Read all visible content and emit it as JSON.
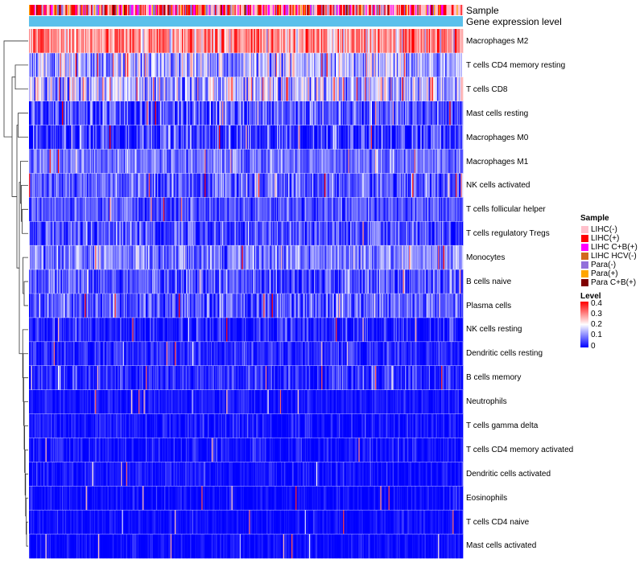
{
  "chart_data": {
    "type": "heatmap",
    "annotation_tracks": [
      "Sample",
      "Gene expression level"
    ],
    "rows": [
      {
        "name": "Macrophages M2",
        "mean": 0.29,
        "sd": 0.07
      },
      {
        "name": "T cells CD4 memory resting",
        "mean": 0.13,
        "sd": 0.07
      },
      {
        "name": "T cells CD8",
        "mean": 0.15,
        "sd": 0.08
      },
      {
        "name": "Mast cells resting",
        "mean": 0.06,
        "sd": 0.06
      },
      {
        "name": "Macrophages M0",
        "mean": 0.04,
        "sd": 0.06
      },
      {
        "name": "Macrophages M1",
        "mean": 0.09,
        "sd": 0.04
      },
      {
        "name": "NK cells activated",
        "mean": 0.07,
        "sd": 0.05
      },
      {
        "name": "T cells follicular helper",
        "mean": 0.06,
        "sd": 0.04
      },
      {
        "name": "T cells regulatory  Tregs",
        "mean": 0.06,
        "sd": 0.05
      },
      {
        "name": "Monocytes",
        "mean": 0.1,
        "sd": 0.05
      },
      {
        "name": "B cells naive",
        "mean": 0.06,
        "sd": 0.05
      },
      {
        "name": "Plasma cells",
        "mean": 0.07,
        "sd": 0.05
      },
      {
        "name": "NK cells resting",
        "mean": 0.02,
        "sd": 0.04
      },
      {
        "name": "Dendritic cells resting",
        "mean": 0.03,
        "sd": 0.03
      },
      {
        "name": "B cells memory",
        "mean": 0.03,
        "sd": 0.04
      },
      {
        "name": "Neutrophils",
        "mean": 0.015,
        "sd": 0.02
      },
      {
        "name": "T cells gamma delta",
        "mean": 0.01,
        "sd": 0.03
      },
      {
        "name": "T cells CD4 memory activated",
        "mean": 0.01,
        "sd": 0.03
      },
      {
        "name": "Dendritic cells activated",
        "mean": 0.01,
        "sd": 0.025
      },
      {
        "name": "Eosinophils",
        "mean": 0.005,
        "sd": 0.02
      },
      {
        "name": "T cells CD4 naive",
        "mean": 0.005,
        "sd": 0.02
      },
      {
        "name": "Mast cells activated",
        "mean": 0.005,
        "sd": 0.02
      }
    ],
    "n_samples": 420,
    "level_color_scale": {
      "min": 0,
      "max": 0.4,
      "low": "#0000ff",
      "mid": "#ffffff",
      "high": "#ff0000"
    },
    "gene_expression_color": "#5bc0eb"
  },
  "legends": {
    "sample": {
      "title": "Sample",
      "items": [
        {
          "label": "LIHC(-)",
          "color": "#ffc0cb"
        },
        {
          "label": "LIHC(+)",
          "color": "#ff0000"
        },
        {
          "label": "LIHC C+B(+)",
          "color": "#ff00ff"
        },
        {
          "label": "LIHC HCV(-)",
          "color": "#d2691e"
        },
        {
          "label": "Para(-)",
          "color": "#9370db"
        },
        {
          "label": "Para(+)",
          "color": "#ffa500"
        },
        {
          "label": "Para C+B(+)",
          "color": "#800000"
        }
      ]
    },
    "level": {
      "title": "Level",
      "ticks": [
        "0.4",
        "0.3",
        "0.2",
        "0.1",
        "0"
      ]
    }
  }
}
